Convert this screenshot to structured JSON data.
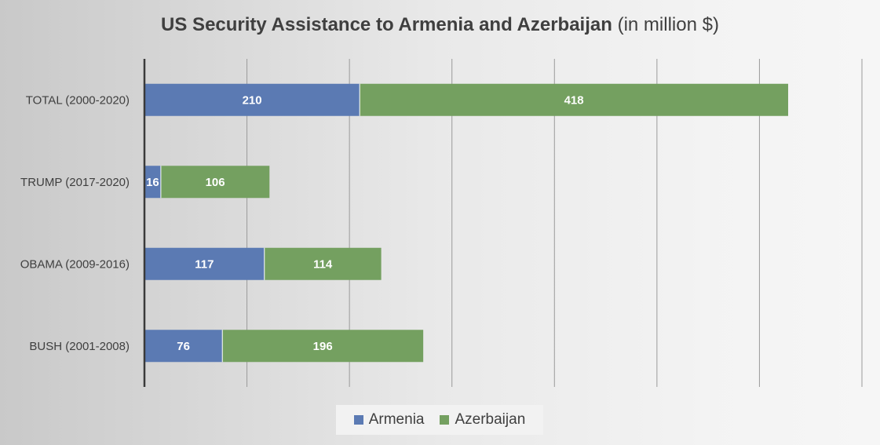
{
  "chart_data": {
    "type": "bar",
    "orientation": "horizontal",
    "stacked": true,
    "title_main": "US Security Assistance to Armenia and Azerbaijan",
    "title_unit": "(in million $)",
    "categories": [
      "TOTAL (2000-2020)",
      "TRUMP (2017-2020)",
      "OBAMA (2009-2016)",
      "BUSH (2001-2008)"
    ],
    "series": [
      {
        "name": "Armenia",
        "values": [
          210,
          16,
          117,
          76
        ],
        "color": "#5b7ab3"
      },
      {
        "name": "Azerbaijan",
        "values": [
          418,
          106,
          114,
          196
        ],
        "color": "#74a060"
      }
    ],
    "xlim": [
      0,
      700
    ],
    "grid": true,
    "legend_position": "bottom"
  }
}
